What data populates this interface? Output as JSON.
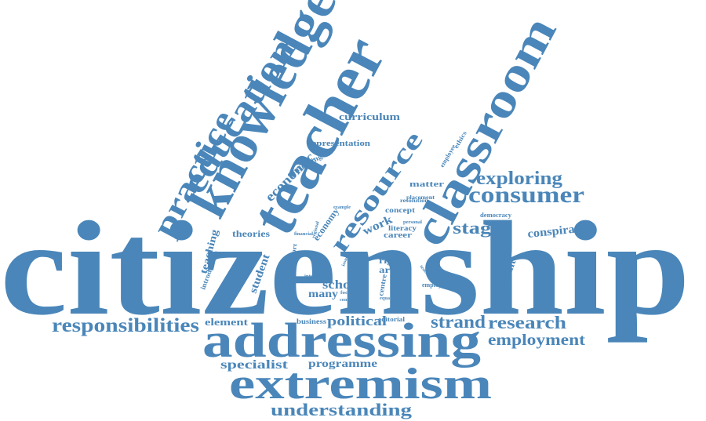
{
  "colors": {
    "word": "#4a86b9",
    "background": "#ffffff"
  },
  "words": [
    {
      "id": "citizenship",
      "text": "citizenship"
    },
    {
      "id": "addressing",
      "text": "addressing"
    },
    {
      "id": "extremism",
      "text": "extremism"
    },
    {
      "id": "teacher",
      "text": "teacher"
    },
    {
      "id": "knowledge",
      "text": "knowledge"
    },
    {
      "id": "classroom",
      "text": "classroom"
    },
    {
      "id": "education",
      "text": "education"
    },
    {
      "id": "practice",
      "text": "practice"
    },
    {
      "id": "resource",
      "text": "resource"
    },
    {
      "id": "consumer",
      "text": "consumer"
    },
    {
      "id": "exploring",
      "text": "exploring"
    },
    {
      "id": "responsibilities",
      "text": "responsibilities"
    },
    {
      "id": "understanding",
      "text": "understanding"
    },
    {
      "id": "research",
      "text": "research"
    },
    {
      "id": "employment",
      "text": "employment"
    },
    {
      "id": "strand",
      "text": "strand"
    },
    {
      "id": "stage",
      "text": "stage"
    },
    {
      "id": "political",
      "text": "political"
    },
    {
      "id": "specialist",
      "text": "specialist"
    },
    {
      "id": "programme",
      "text": "programme"
    },
    {
      "id": "conspiracy",
      "text": "conspiracy"
    },
    {
      "id": "economic",
      "text": "economic"
    },
    {
      "id": "curriculum",
      "text": "curriculum"
    },
    {
      "id": "representation",
      "text": "representation"
    },
    {
      "id": "element",
      "text": "element"
    },
    {
      "id": "school",
      "text": "school"
    },
    {
      "id": "student",
      "text": "student"
    },
    {
      "id": "many",
      "text": "many"
    },
    {
      "id": "teaching",
      "text": "teaching"
    },
    {
      "id": "theories",
      "text": "theories"
    },
    {
      "id": "important",
      "text": "important"
    },
    {
      "id": "work",
      "text": "work"
    },
    {
      "id": "career",
      "text": "career"
    },
    {
      "id": "matter",
      "text": "matter"
    },
    {
      "id": "economy",
      "text": "economy"
    },
    {
      "id": "right",
      "text": "right"
    },
    {
      "id": "area",
      "text": "area"
    },
    {
      "id": "concept",
      "text": "concept"
    },
    {
      "id": "literacy",
      "text": "literacy"
    },
    {
      "id": "consuming",
      "text": "consuming"
    },
    {
      "id": "business",
      "text": "business"
    },
    {
      "id": "editorial",
      "text": "editorial"
    },
    {
      "id": "democracy",
      "text": "democracy"
    },
    {
      "id": "employer",
      "text": "employer"
    },
    {
      "id": "introduction",
      "text": "introduction"
    },
    {
      "id": "report",
      "text": "report"
    },
    {
      "id": "centre",
      "text": "centre"
    },
    {
      "id": "passion",
      "text": "passion"
    },
    {
      "id": "placement",
      "text": "placement"
    },
    {
      "id": "resolution",
      "text": "resolution"
    },
    {
      "id": "employee",
      "text": "employee"
    },
    {
      "id": "ethics",
      "text": "ethics"
    },
    {
      "id": "financial",
      "text": "financial"
    },
    {
      "id": "personal",
      "text": "personal"
    },
    {
      "id": "example",
      "text": "example"
    },
    {
      "id": "interest",
      "text": "interest"
    },
    {
      "id": "focus",
      "text": "focus"
    },
    {
      "id": "conflict",
      "text": "conflict"
    },
    {
      "id": "equality",
      "text": "equality"
    },
    {
      "id": "issue",
      "text": "issue"
    },
    {
      "id": "role",
      "text": "role"
    },
    {
      "id": "regional",
      "text": "regional"
    },
    {
      "id": "teacher_small",
      "text": "teacher"
    }
  ]
}
